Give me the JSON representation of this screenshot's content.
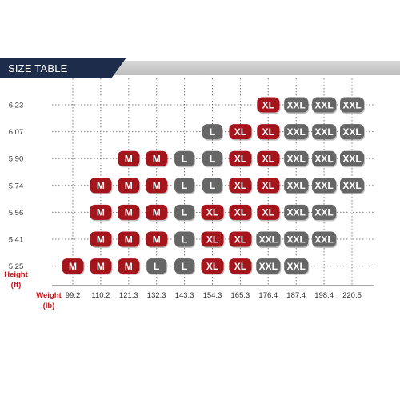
{
  "header": {
    "title": "SIZE TABLE"
  },
  "colors": {
    "M": "#a5161c",
    "XL": "#a5161c",
    "L": "#666666",
    "XXL": "#666666",
    "header_dark": "#1d2c4a",
    "header_light": "#c8c8c8",
    "grid": "#7f7f7f",
    "axis_name": "#c0161b"
  },
  "chart_data": {
    "type": "table",
    "title": "SIZE TABLE",
    "ylabel": "Height",
    "ylabel_unit": "(ft)",
    "xlabel": "Weight",
    "xlabel_unit": "(lb)",
    "x": [
      "99.2",
      "110.2",
      "121.3",
      "132.3",
      "143.3",
      "154.3",
      "165.3",
      "176.4",
      "187.4",
      "198.4",
      "220.5"
    ],
    "y": [
      "6.23",
      "6.07",
      "5.90",
      "5.74",
      "5.56",
      "5.41",
      "5.25"
    ],
    "cells": [
      [
        "",
        "",
        "",
        "",
        "",
        "",
        "",
        "XL",
        "XXL",
        "XXL",
        "XXL"
      ],
      [
        "",
        "",
        "",
        "",
        "",
        "L",
        "XL",
        "XL",
        "XXL",
        "XXL",
        "XXL"
      ],
      [
        "",
        "",
        "M",
        "M",
        "L",
        "L",
        "XL",
        "XL",
        "XXL",
        "XXL",
        "XXL"
      ],
      [
        "",
        "M",
        "M",
        "M",
        "L",
        "L",
        "XL",
        "XL",
        "XXL",
        "XXL",
        "XXL"
      ],
      [
        "",
        "M",
        "M",
        "M",
        "L",
        "XL",
        "XL",
        "XL",
        "XXL",
        "XXL",
        ""
      ],
      [
        "",
        "M",
        "M",
        "M",
        "L",
        "XL",
        "XL",
        "XXL",
        "XXL",
        "XXL",
        ""
      ],
      [
        "M",
        "M",
        "M",
        "L",
        "L",
        "XL",
        "XL",
        "XXL",
        "XXL",
        "",
        ""
      ]
    ],
    "grid": true
  }
}
